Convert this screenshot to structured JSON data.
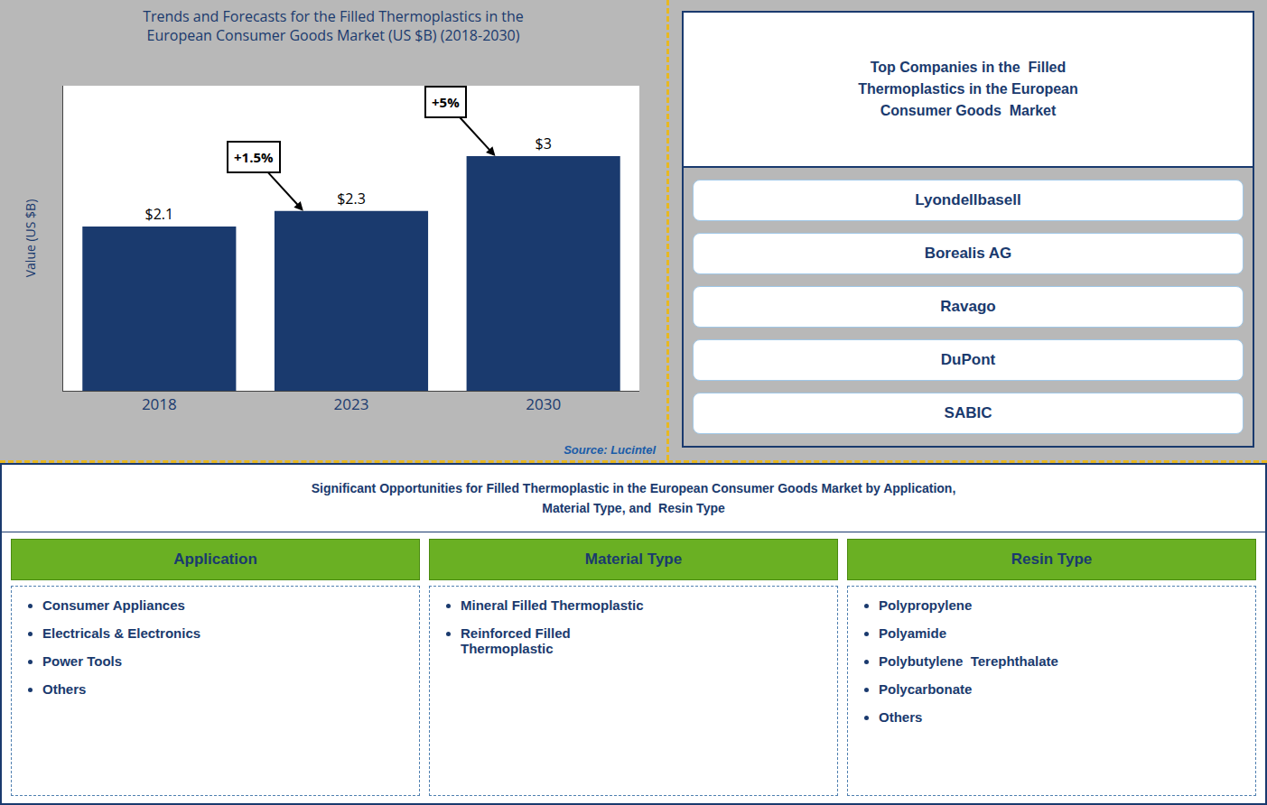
{
  "chart_data": {
    "type": "bar",
    "title": "Trends and Forecasts for the Filled Thermoplastics in the\nEuropean Consumer Goods Market (US $B) (2018-2030)",
    "categories": [
      "2018",
      "2023",
      "2030"
    ],
    "values": [
      2.1,
      2.3,
      3.0
    ],
    "value_labels": [
      "$2.1",
      "$2.3",
      "$3"
    ],
    "data_labels": true,
    "color": "#1a3a6e",
    "y_label": "Value (US $B)",
    "ylim": [
      0,
      3.9
    ],
    "yticks": [],
    "tick_labels": "x",
    "grid": false,
    "annotations": [
      "+1.5%",
      "+5%"
    ],
    "source": "Source: Lucintel"
  },
  "side_panel": {
    "title": "Top Companies in the  Filled\nThermoplastics in the European\nConsumer Goods  Market",
    "items": [
      "Lyondellbasell",
      "Borealis AG",
      "Ravago",
      "DuPont",
      "SABIC"
    ]
  },
  "opportunities": {
    "title": "Significant Opportunities for Filled Thermoplastic in the European Consumer Goods Market by Application,\nMaterial Type, and  Resin Type",
    "columns": [
      {
        "header": "Application",
        "items": [
          "Consumer Appliances",
          "Electricals & Electronics",
          "Power Tools",
          "Others"
        ]
      },
      {
        "header": "Material Type",
        "items": [
          "Mineral Filled Thermoplastic",
          "Reinforced Filled\nThermoplastic"
        ]
      },
      {
        "header": "Resin Type",
        "items": [
          "Polypropylene",
          "Polyamide",
          "Polybutylene  Terephthalate",
          "Polycarbonate",
          "Others"
        ]
      }
    ]
  }
}
